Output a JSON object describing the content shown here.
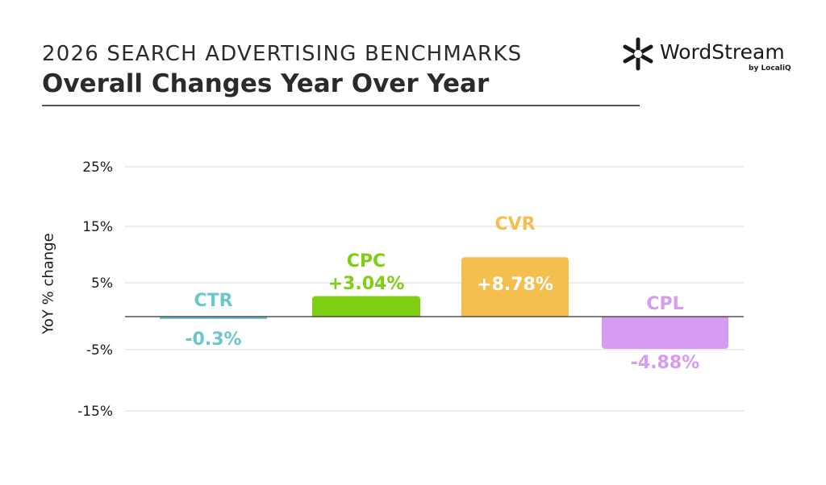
{
  "header": {
    "supertitle": "2026 SEARCH ADVERTISING BENCHMARKS",
    "title": "Overall Changes Year Over Year"
  },
  "brand": {
    "name": "WordStream",
    "sub": "by LocaliQ",
    "logo_icon": "wordstream-logo-icon"
  },
  "chart_data": {
    "type": "bar",
    "ylabel": "YoY % change",
    "yticks": [
      "25%",
      "15%",
      "5%",
      "-5%",
      "-15%"
    ],
    "categories": [
      "CTR",
      "CPC",
      "CVR",
      "CPL"
    ],
    "values": [
      -0.3,
      3.04,
      8.78,
      -4.88
    ],
    "value_labels": [
      "-0.3%",
      "+3.04%",
      "+8.78%",
      "-4.88%"
    ],
    "colors": [
      "#6cc7cd",
      "#7fce14",
      "#f4bf4f",
      "#d69cf2"
    ],
    "grid": true,
    "legend": "none"
  }
}
